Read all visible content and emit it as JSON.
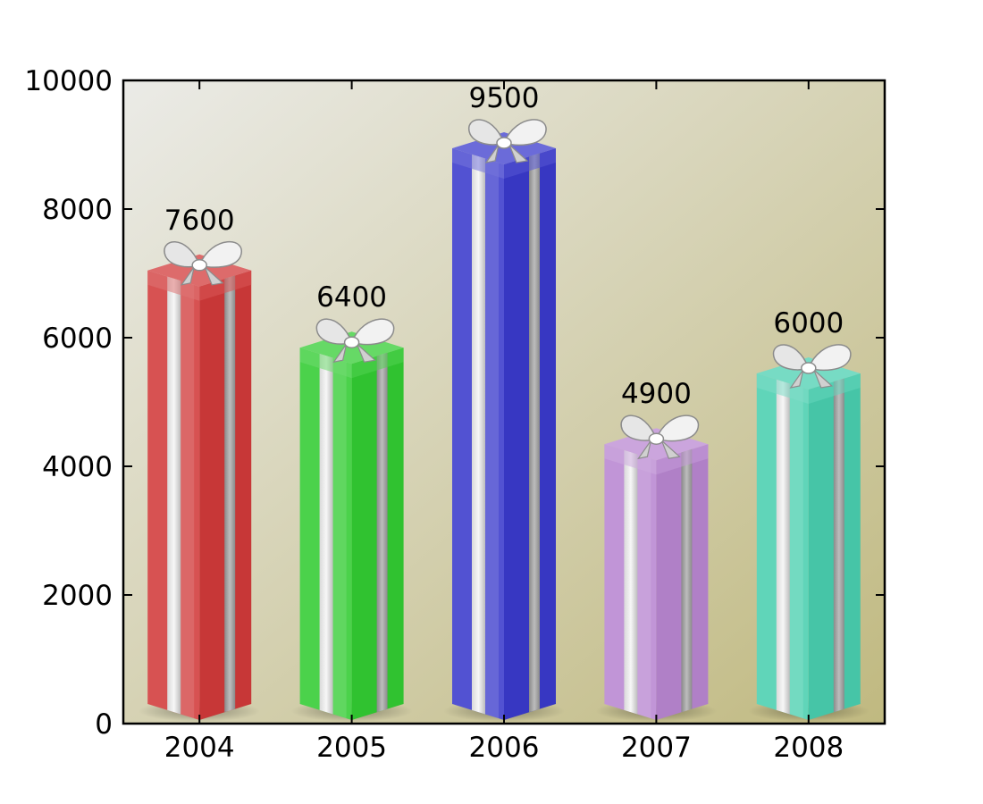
{
  "chart_data": {
    "type": "bar",
    "title": "",
    "xlabel": "",
    "ylabel": "",
    "categories": [
      "2004",
      "2005",
      "2006",
      "2007",
      "2008"
    ],
    "values": [
      7600,
      6400,
      9500,
      4900,
      6000
    ],
    "value_labels": [
      "7600",
      "6400",
      "9500",
      "4900",
      "6000"
    ],
    "ylim": [
      0,
      10000
    ],
    "yticks": [
      0,
      2000,
      4000,
      6000,
      8000,
      10000
    ],
    "ytick_labels": [
      "0",
      "2000",
      "4000",
      "6000",
      "8000",
      "10000"
    ],
    "grid": false,
    "bar_style": "gift box with silver ribbon and bow",
    "bar_colors": [
      "#d13a3a",
      "#33cc33",
      "#3a3acc",
      "#b987d1",
      "#4acfb0"
    ],
    "background_gradient": [
      "#e8e8e4",
      "#c2bb82"
    ]
  }
}
